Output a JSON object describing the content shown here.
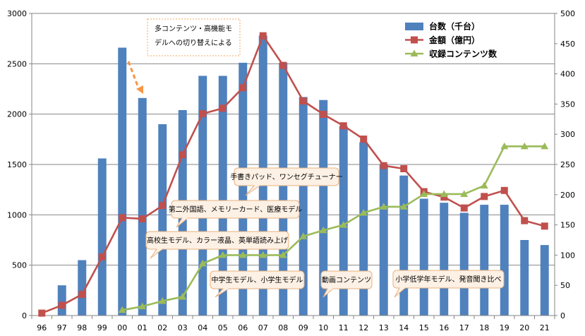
{
  "chart_data": {
    "type": "bar",
    "categories": [
      "96",
      "97",
      "98",
      "99",
      "00",
      "01",
      "02",
      "03",
      "04",
      "05",
      "06",
      "07",
      "08",
      "09",
      "10",
      "11",
      "12",
      "13",
      "14",
      "15",
      "16",
      "17",
      "18",
      "19",
      "20",
      "21"
    ],
    "ylim": [
      0,
      3000
    ],
    "y2lim": [
      0,
      500
    ],
    "yticks": [
      0,
      500,
      1000,
      1500,
      2000,
      2500,
      3000
    ],
    "y2ticks": [
      0,
      50,
      100,
      150,
      200,
      250,
      300,
      350,
      400,
      450,
      500
    ],
    "grid": true,
    "legend_position": "top-right",
    "series": [
      {
        "name": "台数（千台）",
        "kind": "bar",
        "axis": "left",
        "color": "#4f81bd",
        "values": [
          null,
          300,
          550,
          1560,
          2660,
          2160,
          1900,
          2040,
          2380,
          2380,
          2510,
          2780,
          2510,
          2170,
          2140,
          1880,
          1720,
          1500,
          1390,
          1160,
          1120,
          1020,
          1100,
          1100,
          750,
          700
        ]
      },
      {
        "name": "金額（億円）",
        "kind": "line",
        "axis": "right",
        "color": "#c0504d",
        "marker": "square",
        "values": [
          4,
          17,
          35,
          97,
          162,
          160,
          182,
          266,
          334,
          343,
          377,
          463,
          414,
          355,
          333,
          314,
          292,
          248,
          243,
          205,
          196,
          178,
          197,
          207,
          157,
          148
        ]
      },
      {
        "name": "収録コンテンツ数",
        "kind": "line",
        "axis": "right",
        "color": "#9bbb59",
        "marker": "triangle",
        "values": [
          null,
          null,
          null,
          null,
          9,
          15,
          24,
          31,
          86,
          100,
          100,
          100,
          100,
          131,
          141,
          150,
          170,
          180,
          180,
          201,
          201,
          201,
          215,
          280,
          280,
          280
        ]
      }
    ],
    "annotations": [
      {
        "id": "multi",
        "lines": [
          "多コンテンツ・高機能モ",
          "デルへの切り替えによる"
        ]
      },
      {
        "id": "handwrite",
        "lines": [
          "手書きパッド、ワンセグチューナー"
        ]
      },
      {
        "id": "second-lang",
        "lines": [
          "第二外国語、メモリーカード、医療モデル"
        ]
      },
      {
        "id": "highschool",
        "lines": [
          "高校生モデル、カラー液晶、英単語読み上げ"
        ]
      },
      {
        "id": "junior",
        "lines": [
          "中学生モデル、小学生モデル"
        ]
      },
      {
        "id": "video",
        "lines": [
          "動画コンテンツ"
        ]
      },
      {
        "id": "lower-elem",
        "lines": [
          "小学低学年モデル、発音聞き比べ"
        ]
      }
    ]
  }
}
